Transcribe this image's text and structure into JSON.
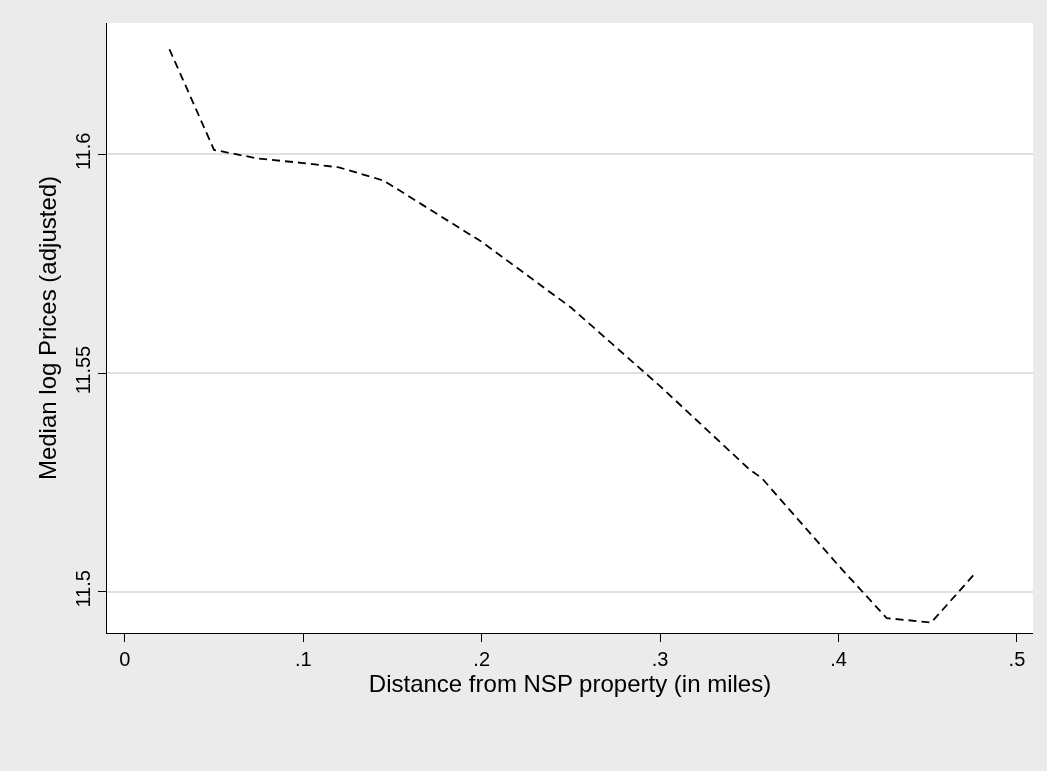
{
  "chart_data": {
    "type": "line",
    "xlabel": "Distance from NSP property (in miles)",
    "ylabel": "Median log Prices (adjusted)",
    "x": [
      0.025,
      0.05,
      0.075,
      0.1,
      0.12,
      0.145,
      0.2,
      0.25,
      0.3,
      0.35,
      0.357,
      0.4,
      0.427,
      0.452,
      0.476
    ],
    "series": [
      {
        "color": "#000000",
        "values": [
          11.624,
          11.601,
          11.599,
          11.598,
          11.597,
          11.594,
          11.58,
          11.565,
          11.547,
          11.528,
          11.526,
          11.506,
          11.494,
          11.493,
          11.504
        ]
      }
    ],
    "xlim": [
      -0.01,
      0.509
    ],
    "ylim": [
      11.4906,
      11.63
    ],
    "xticks": [
      0,
      {
        "value": 0.1,
        "label": ".1"
      },
      {
        "value": 0.2,
        "label": ".2"
      },
      {
        "value": 0.3,
        "label": ".3"
      },
      {
        "value": 0.4,
        "label": ".4"
      },
      {
        "value": 0.5,
        "label": ".5"
      }
    ],
    "yticks": [
      11.5,
      11.55,
      11.6
    ],
    "grid": "y",
    "line_style": "dashed",
    "marker": "none",
    "legend": false
  }
}
